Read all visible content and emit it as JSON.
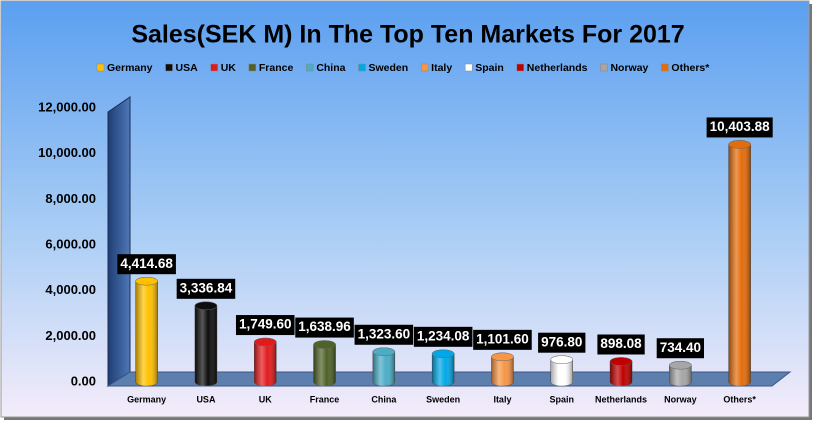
{
  "chart_data": {
    "type": "bar",
    "title": "Sales(SEK M) In The Top Ten Markets For 2017",
    "categories": [
      "Germany",
      "USA",
      "UK",
      "France",
      "China",
      "Sweden",
      "Italy",
      "Spain",
      "Netherlands",
      "Norway",
      "Others*"
    ],
    "values": [
      4414.68,
      3336.84,
      1749.6,
      1638.96,
      1323.6,
      1234.08,
      1101.6,
      976.8,
      898.08,
      734.4,
      10403.88
    ],
    "value_labels": [
      "4,414.68",
      "3,336.84",
      "1,749.60",
      "1,638.96",
      "1,323.60",
      "1,234.08",
      "1,101.60",
      "976.80",
      "898.08",
      "734.40",
      "10,403.88"
    ],
    "colors": [
      "#ffc000",
      "#0d0d0d",
      "#e31a1c",
      "#4f6228",
      "#4bacc6",
      "#00a8e8",
      "#f79646",
      "#ffffff",
      "#c00000",
      "#a6a6a6",
      "#e46c0a"
    ],
    "ylim": [
      0,
      12000
    ],
    "yticks": [
      {
        "value": 0,
        "label": "0.00"
      },
      {
        "value": 2000,
        "label": "2,000.00"
      },
      {
        "value": 4000,
        "label": "4,000.00"
      },
      {
        "value": 6000,
        "label": "6,000.00"
      },
      {
        "value": 8000,
        "label": "8,000.00"
      },
      {
        "value": 10000,
        "label": "10,000.00"
      },
      {
        "value": 12000,
        "label": "12,000.00"
      }
    ],
    "grid": false,
    "legend": "top"
  }
}
